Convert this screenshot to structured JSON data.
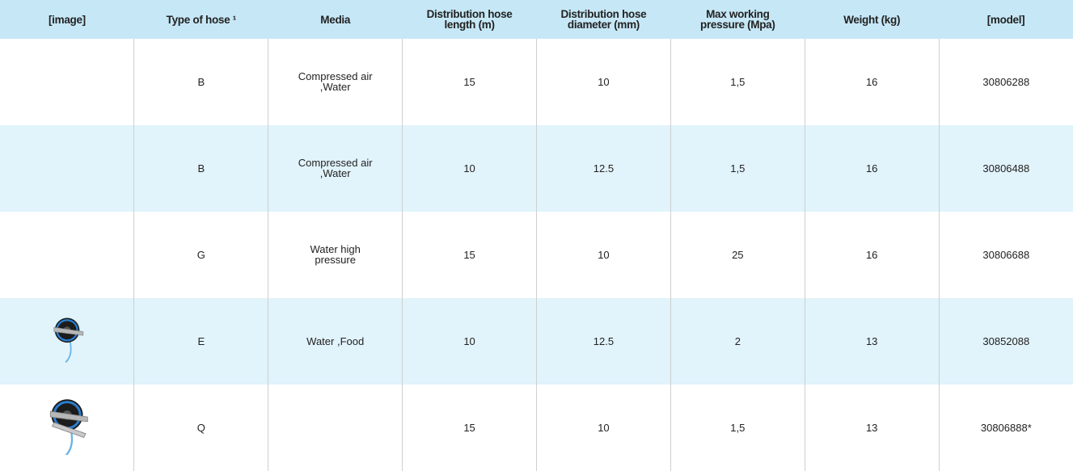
{
  "header": [
    "[image]",
    "Type of hose ¹",
    "Media",
    "Distribution hose length (m)",
    "Distribution hose diameter (mm)",
    "Max working pressure (Mpa)",
    "Weight (kg)",
    "[model]"
  ],
  "rows": [
    {
      "type": "B",
      "media": "Compressed air ,Water",
      "length": "15",
      "diameter": "10",
      "pressure": "1,5",
      "weight": "16",
      "model": "30806288"
    },
    {
      "type": "B",
      "media": "Compressed air ,Water",
      "length": "10",
      "diameter": "12.5",
      "pressure": "1,5",
      "weight": "16",
      "model": "30806488"
    },
    {
      "type": "G",
      "media": "Water high pressure",
      "length": "15",
      "diameter": "10",
      "pressure": "25",
      "weight": "16",
      "model": "30806688"
    },
    {
      "type": "E",
      "media": "Water ,Food",
      "length": "10",
      "diameter": "12.5",
      "pressure": "2",
      "weight": "13",
      "model": "30852088"
    },
    {
      "type": "Q",
      "length": "15",
      "diameter": "10",
      "pressure": "1,5",
      "weight": "13",
      "model": "30806888*"
    }
  ]
}
